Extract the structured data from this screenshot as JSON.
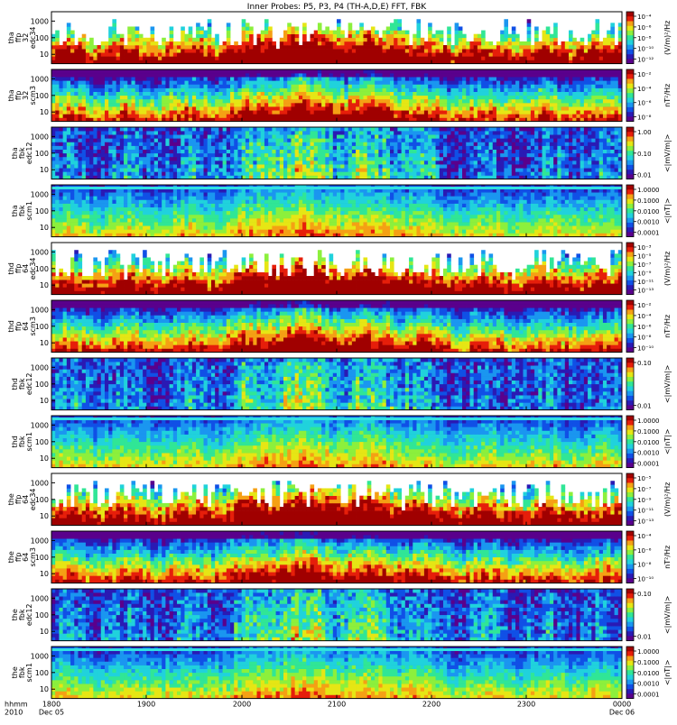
{
  "title": "Inner Probes: P5, P3, P4 (TH-A,D,E) FFT, FBK",
  "chart_data": {
    "type": "heatmap",
    "title": "Inner Probes: P5, P3, P4 (TH-A,D,E) FFT, FBK",
    "x_axis": {
      "ticks": [
        "1800",
        "1900",
        "2000",
        "2100",
        "2200",
        "2300",
        "0000"
      ],
      "left_labels": [
        "hhmm",
        "2010"
      ],
      "start_date": "Dec 05",
      "end_date": "Dec 06"
    },
    "panels": [
      {
        "label": [
          "tha",
          "ffp",
          "32",
          "edc34"
        ],
        "yticks": [
          "10",
          "100",
          "1000"
        ],
        "cbar_unit": "(V/m)²/Hz",
        "cbar_ticks": [
          "10⁻⁴",
          "10⁻⁶",
          "10⁻⁸",
          "10⁻¹⁰",
          "10⁻¹²"
        ],
        "kind": "fft_e"
      },
      {
        "label": [
          "tha",
          "ffp",
          "32",
          "scm3"
        ],
        "yticks": [
          "10",
          "100",
          "1000"
        ],
        "cbar_unit": "nT²/Hz",
        "cbar_ticks": [
          "10⁻²",
          "10⁻⁴",
          "10⁻⁶",
          "10⁻⁸"
        ],
        "kind": "fft_b"
      },
      {
        "label": [
          "tha",
          "fbk",
          "edc12"
        ],
        "yticks": [
          "10",
          "100",
          "1000"
        ],
        "cbar_unit": "<|mV/m|>",
        "cbar_ticks": [
          "1.00",
          "0.10",
          "0.01"
        ],
        "kind": "fbk_e"
      },
      {
        "label": [
          "tha",
          "fbk",
          "scm1"
        ],
        "yticks": [
          "10",
          "100",
          "1000"
        ],
        "cbar_unit": "<|nT|>",
        "cbar_ticks": [
          "1.0000",
          "0.1000",
          "0.0100",
          "0.0010",
          "0.0001"
        ],
        "kind": "fbk_b"
      },
      {
        "label": [
          "thd",
          "ffp",
          "64",
          "edc34"
        ],
        "yticks": [
          "10",
          "100",
          "1000"
        ],
        "cbar_unit": "(V/m)²/Hz",
        "cbar_ticks": [
          "10⁻³",
          "10⁻⁵",
          "10⁻⁷",
          "10⁻⁹",
          "10⁻¹¹",
          "10⁻¹³"
        ],
        "kind": "fft_e"
      },
      {
        "label": [
          "thd",
          "ffp",
          "64",
          "scm3"
        ],
        "yticks": [
          "10",
          "100",
          "1000"
        ],
        "cbar_unit": "nT²/Hz",
        "cbar_ticks": [
          "10⁻²",
          "10⁻⁴",
          "10⁻⁶",
          "10⁻⁸",
          "10⁻¹⁰"
        ],
        "kind": "fft_b"
      },
      {
        "label": [
          "thd",
          "fbk",
          "edc12"
        ],
        "yticks": [
          "10",
          "100",
          "1000"
        ],
        "cbar_unit": "<|mV/m|>",
        "cbar_ticks": [
          "0.10",
          "0.01"
        ],
        "kind": "fbk_e"
      },
      {
        "label": [
          "thd",
          "fbk",
          "scm1"
        ],
        "yticks": [
          "10",
          "100",
          "1000"
        ],
        "cbar_unit": "<|nT|>",
        "cbar_ticks": [
          "1.0000",
          "0.1000",
          "0.0100",
          "0.0010",
          "0.0001"
        ],
        "kind": "fbk_b"
      },
      {
        "label": [
          "the",
          "ffp",
          "64",
          "edc34"
        ],
        "yticks": [
          "10",
          "100",
          "1000"
        ],
        "cbar_unit": "(V/m)²/Hz",
        "cbar_ticks": [
          "10⁻⁵",
          "10⁻⁷",
          "10⁻⁹",
          "10⁻¹¹",
          "10⁻¹³"
        ],
        "kind": "fft_e"
      },
      {
        "label": [
          "the",
          "ffp",
          "64",
          "scm3"
        ],
        "yticks": [
          "10",
          "100",
          "1000"
        ],
        "cbar_unit": "nT²/Hz",
        "cbar_ticks": [
          "10⁻⁴",
          "10⁻⁶",
          "10⁻⁸",
          "10⁻¹⁰"
        ],
        "kind": "fft_b"
      },
      {
        "label": [
          "the",
          "fbk",
          "edc12"
        ],
        "yticks": [
          "10",
          "100",
          "1000"
        ],
        "cbar_unit": "<|mV/m|>",
        "cbar_ticks": [
          "0.10",
          "0.01"
        ],
        "kind": "fbk_e"
      },
      {
        "label": [
          "the",
          "fbk",
          "scm1"
        ],
        "yticks": [
          "10",
          "100",
          "1000"
        ],
        "cbar_unit": "<|nT|>",
        "cbar_ticks": [
          "1.0000",
          "0.1000",
          "0.0100",
          "0.0010",
          "0.0001"
        ],
        "kind": "fbk_b"
      }
    ],
    "colormap": [
      "#5a008c",
      "#2a1ab4",
      "#1050e6",
      "#1a96f0",
      "#20d2dc",
      "#30e696",
      "#8cf03c",
      "#e6e614",
      "#f5a014",
      "#e61e0a",
      "#a00000"
    ]
  }
}
